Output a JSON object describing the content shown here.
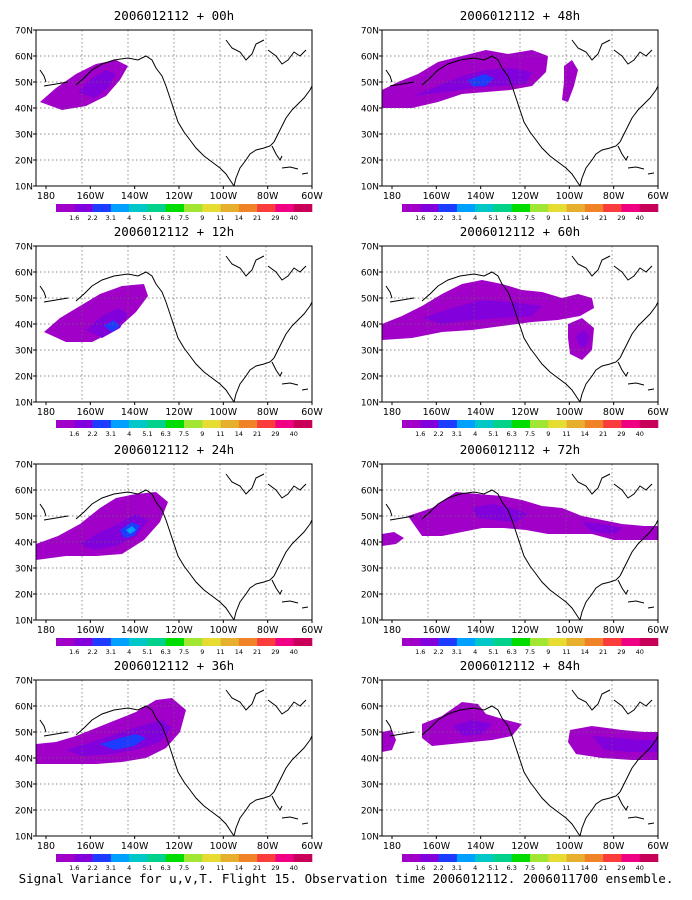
{
  "caption": "Signal Variance for u,v,T. Flight 15. Observation time 2006012112. 2006011700 ensemble.",
  "axes": {
    "lat_labels": [
      "10N",
      "20N",
      "30N",
      "40N",
      "50N",
      "60N",
      "70N"
    ],
    "lon_labels": [
      "180",
      "160W",
      "140W",
      "120W",
      "100W",
      "80W",
      "60W"
    ]
  },
  "colorbar": {
    "labels": [
      "1.6",
      "2.2",
      "3.1",
      "4",
      "5.1",
      "6.3",
      "7.5",
      "9",
      "11",
      "14",
      "21",
      "29",
      "40"
    ],
    "colors": [
      "#a000c8",
      "#8200dc",
      "#1e3cff",
      "#00a0ff",
      "#00c8c8",
      "#00d28c",
      "#00dc00",
      "#a0e632",
      "#e6dc32",
      "#e6af2d",
      "#f08228",
      "#fa3c3c",
      "#f00082",
      "#c8005a"
    ]
  },
  "panels": [
    {
      "title": "2006012112 + 00h"
    },
    {
      "title": "2006012112 + 12h"
    },
    {
      "title": "2006012112 + 24h"
    },
    {
      "title": "2006012112 + 36h"
    },
    {
      "title": "2006012112 + 48h"
    },
    {
      "title": "2006012112 + 60h"
    },
    {
      "title": "2006012112 + 72h"
    },
    {
      "title": "2006012112 + 84h"
    }
  ]
}
